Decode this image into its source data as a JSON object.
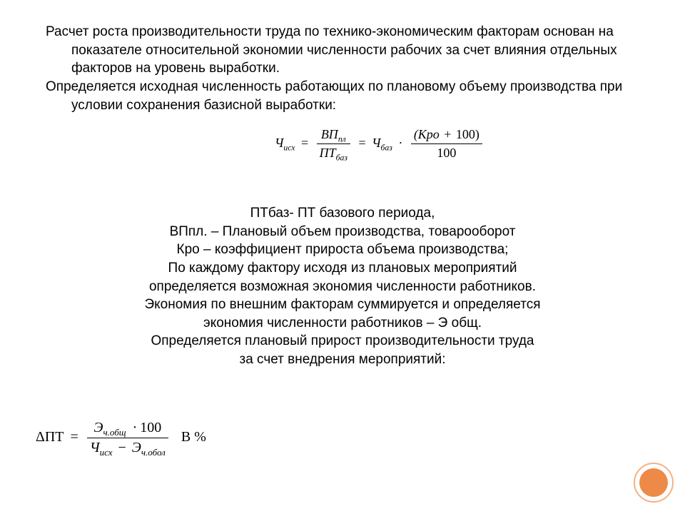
{
  "colors": {
    "background": "#ffffff",
    "text": "#000000",
    "accent_outer_ring": "#f5b183",
    "accent_inner_fill": "#ed8a47",
    "fraction_rule": "#000000"
  },
  "typography": {
    "body_font": "Arial",
    "body_fontsize_pt": 14,
    "formula_font": "Times New Roman",
    "formula_fontsize_pt": 14,
    "formula_style": "italic"
  },
  "top": {
    "p1": "Расчет роста производительности труда по технико-экономическим факторам основан на показателе относительной экономии численности рабочих за счет влияния отдельных факторов на уровень выработки.",
    "p2": "Определяется исходная численность работающих по плановому объему производства при условии сохранения базисной выработки:"
  },
  "formula1": {
    "lhs": "Ч",
    "lhs_sub": "исх",
    "eq": "=",
    "frac1_num": "ВП",
    "frac1_num_sub": "пл",
    "frac1_den": "ПТ",
    "frac1_den_sub": "баз",
    "mid": "Ч",
    "mid_sub": "баз",
    "dot": "·",
    "frac2_num_left": "(Кро",
    "frac2_num_plus": "+",
    "frac2_num_right": "100)",
    "frac2_den": "100"
  },
  "center": {
    "l1": "ПТбаз- ПТ базового периода,",
    "l2": "ВПпл. – Плановый объем производства, товарооборот",
    "l3": "Кро – коэффициент прироста объема производства;",
    "l4": "По каждому фактору исходя из плановых мероприятий",
    "l5": "определяется возможная экономия численности работников.",
    "l6": "Экономия по внешним факторам суммируется и определяется",
    "l7": "экономия численности работников – Э общ.",
    "l8": "Определяется плановый прирост производительности труда",
    "l9": "за счет внедрения мероприятий:"
  },
  "formula2": {
    "lhs": "ΔПТ",
    "eq": "=",
    "num_a": "Э",
    "num_a_sub": "ч.общ",
    "num_dot": "·",
    "num_b": "100",
    "den_a": "Ч",
    "den_a_sub": "исх",
    "den_minus": "−",
    "den_b": "Э",
    "den_b_sub": "ч.обол",
    "suffix": "В %"
  },
  "layout": {
    "slide_w": 960,
    "slide_h": 720,
    "deco_circle_outer_d": 56,
    "deco_circle_inner_d": 40
  }
}
